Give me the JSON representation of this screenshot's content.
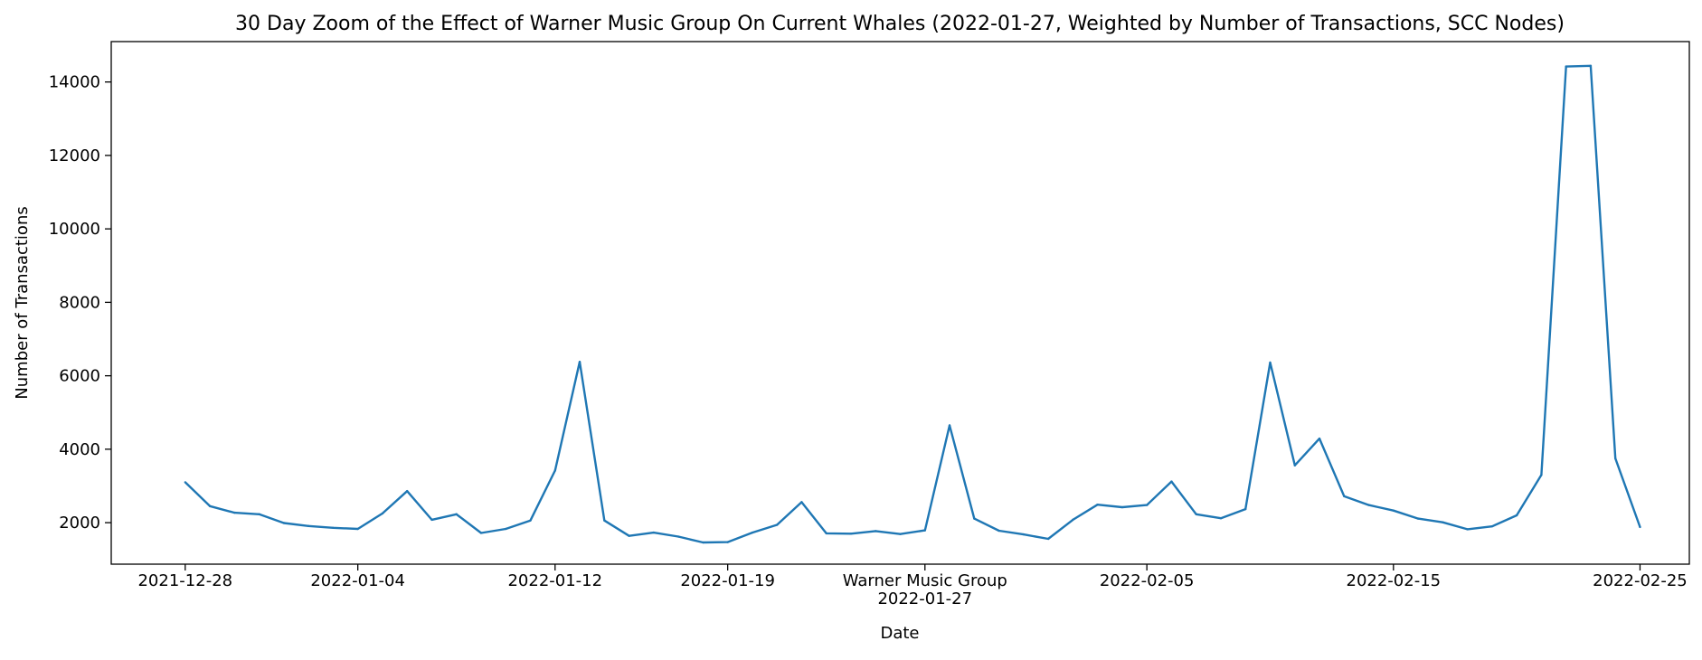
{
  "chart_data": {
    "type": "line",
    "title": "30 Day Zoom of the Effect of Warner Music Group On Current Whales (2022-01-27, Weighted by Number of Transactions, SCC Nodes)",
    "xlabel": "Date",
    "ylabel": "Number of Transactions",
    "x_start": "2021-12-28",
    "xlim": [
      "2021-12-25",
      "2022-02-27"
    ],
    "ylim": [
      870,
      15100
    ],
    "grid": false,
    "yticks": [
      2000,
      4000,
      6000,
      8000,
      10000,
      12000,
      14000
    ],
    "xticks": [
      {
        "date": "2021-12-28",
        "label": "2021-12-28"
      },
      {
        "date": "2022-01-04",
        "label": "2022-01-04"
      },
      {
        "date": "2022-01-12",
        "label": "2022-01-12"
      },
      {
        "date": "2022-01-19",
        "label": "2022-01-19"
      },
      {
        "date": "2022-01-27",
        "label": "2022-01-27",
        "annotation": "Warner Music Group"
      },
      {
        "date": "2022-02-05",
        "label": "2022-02-05"
      },
      {
        "date": "2022-02-15",
        "label": "2022-02-15"
      },
      {
        "date": "2022-02-25",
        "label": "2022-02-25"
      }
    ],
    "series": [
      {
        "color": "#1f77b4",
        "x": [
          "2021-12-28",
          "2021-12-29",
          "2021-12-30",
          "2021-12-31",
          "2022-01-01",
          "2022-01-02",
          "2022-01-03",
          "2022-01-04",
          "2022-01-05",
          "2022-01-06",
          "2022-01-07",
          "2022-01-08",
          "2022-01-09",
          "2022-01-10",
          "2022-01-11",
          "2022-01-12",
          "2022-01-13",
          "2022-01-14",
          "2022-01-15",
          "2022-01-16",
          "2022-01-17",
          "2022-01-18",
          "2022-01-19",
          "2022-01-20",
          "2022-01-21",
          "2022-01-22",
          "2022-01-23",
          "2022-01-24",
          "2022-01-25",
          "2022-01-26",
          "2022-01-27",
          "2022-01-28",
          "2022-01-29",
          "2022-01-30",
          "2022-01-31",
          "2022-02-01",
          "2022-02-02",
          "2022-02-03",
          "2022-02-04",
          "2022-02-05",
          "2022-02-06",
          "2022-02-07",
          "2022-02-08",
          "2022-02-09",
          "2022-02-10",
          "2022-02-11",
          "2022-02-12",
          "2022-02-13",
          "2022-02-14",
          "2022-02-15",
          "2022-02-16",
          "2022-02-17",
          "2022-02-18",
          "2022-02-19",
          "2022-02-20",
          "2022-02-21",
          "2022-02-22",
          "2022-02-23",
          "2022-02-24",
          "2022-02-25"
        ],
        "y": [
          3100,
          2450,
          2270,
          2230,
          1990,
          1910,
          1860,
          1830,
          2250,
          2860,
          2080,
          2230,
          1720,
          1830,
          2060,
          3420,
          6380,
          2060,
          1640,
          1730,
          1620,
          1460,
          1470,
          1730,
          1940,
          2560,
          1710,
          1700,
          1770,
          1690,
          1790,
          4650,
          2110,
          1780,
          1680,
          1560,
          2080,
          2490,
          2420,
          2480,
          3120,
          2230,
          2120,
          2370,
          6360,
          3560,
          4290,
          2720,
          2480,
          2330,
          2110,
          2010,
          1820,
          1900,
          2200,
          3300,
          14420,
          14440,
          3750,
          1880
        ]
      }
    ]
  }
}
